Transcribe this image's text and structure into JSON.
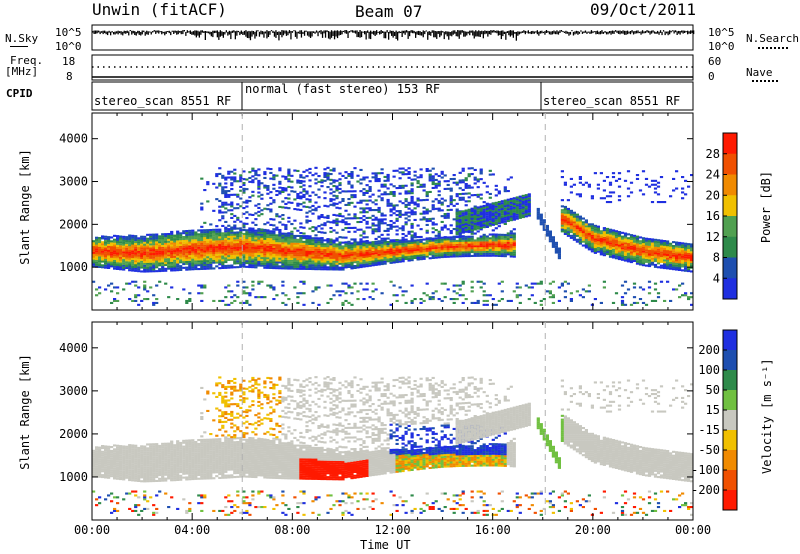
{
  "header": {
    "station": "Unwin (fitACF)",
    "beam": "Beam 07",
    "date": "09/Oct/2011"
  },
  "noise_panel": {
    "left_label": "N.Sky",
    "right_label": "N.Search",
    "left_ticks": [
      "10^5",
      "10^0"
    ],
    "right_ticks": [
      "10^5",
      "10^0"
    ]
  },
  "freq_panel": {
    "left_label_1": "Freq.",
    "left_label_2": "[MHz]",
    "right_label": "Nave",
    "left_ticks": [
      "18",
      "8"
    ],
    "right_ticks": [
      "60",
      "0"
    ]
  },
  "cpid_panel": {
    "label": "CPID",
    "segments": [
      "stereo_scan 8551 RF",
      "normal (fast stereo) 153 RF",
      "stereo_scan 8551 RF"
    ]
  },
  "colors": {
    "power_scale": [
      "#1f2fe0",
      "#1e4fb0",
      "#2e8a4a",
      "#50a050",
      "#f0c000",
      "#f08a00",
      "#f05000",
      "#ff1a00"
    ],
    "velocity_scale": [
      "#ff1a00",
      "#f05000",
      "#f08a00",
      "#f0c000",
      "#c8c8c0",
      "#70c040",
      "#2e8a4a",
      "#1e4fb0",
      "#1f2fe0"
    ]
  },
  "chart_data": [
    {
      "type": "heatmap",
      "panel": "power",
      "ylabel": "Slant Range [km]",
      "ylim": [
        0,
        4600
      ],
      "y_ticks": [
        "1000",
        "2000",
        "3000",
        "4000"
      ],
      "x_ticks": [
        "00:00",
        "04:00",
        "08:00",
        "12:00",
        "16:00",
        "20:00",
        "00:00"
      ],
      "colorbar_label": "Power [dB]",
      "colorbar_ticks": [
        "28",
        "24",
        "20",
        "16",
        "12",
        "8",
        "4"
      ],
      "echo_bands": [
        {
          "name": "main",
          "x": [
            0,
            2,
            4,
            6,
            8,
            10,
            12,
            14,
            16,
            17
          ],
          "y": [
            1350,
            1300,
            1400,
            1450,
            1350,
            1250,
            1350,
            1450,
            1500,
            1500
          ]
        },
        {
          "name": "post",
          "x": [
            18.8,
            20,
            22,
            24
          ],
          "y": [
            2100,
            1650,
            1350,
            1200
          ]
        }
      ]
    },
    {
      "type": "heatmap",
      "panel": "velocity",
      "ylabel": "Slant Range [km]",
      "xlabel": "Time UT",
      "ylim": [
        0,
        4600
      ],
      "y_ticks": [
        "1000",
        "2000",
        "3000",
        "4000"
      ],
      "x_ticks": [
        "00:00",
        "04:00",
        "08:00",
        "12:00",
        "16:00",
        "20:00",
        "00:00"
      ],
      "colorbar_label": "Velocity [m s⁻¹]",
      "colorbar_ticks": [
        "200",
        "100",
        "50",
        "15",
        "-15",
        "-50",
        "-100",
        "-200"
      ],
      "markers_x": [
        6.0,
        18.1
      ]
    }
  ]
}
